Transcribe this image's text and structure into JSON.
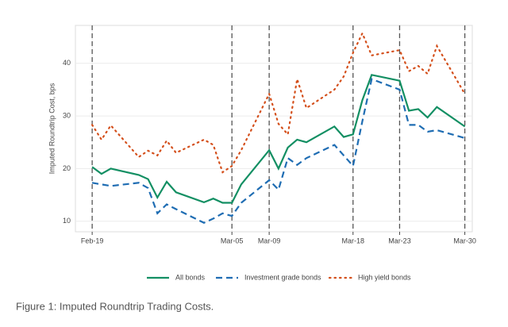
{
  "chart_data": {
    "type": "line",
    "ylabel": "Imputed Roundtrip Cost, bps",
    "caption": "Figure 1: Imputed Roundtrip Trading Costs.",
    "x": [
      0,
      1,
      2,
      5,
      6,
      7,
      8,
      9,
      12,
      13,
      14,
      15,
      16,
      19,
      20,
      21,
      22,
      23,
      26,
      27,
      28,
      29,
      30,
      33,
      34,
      35,
      36,
      37,
      40
    ],
    "xlim": [
      -1.8,
      40.8
    ],
    "xticks": [
      {
        "value": 0,
        "label": "Feb-19"
      },
      {
        "value": 15,
        "label": "Mar-05"
      },
      {
        "value": 19,
        "label": "Mar-09"
      },
      {
        "value": 28,
        "label": "Mar-18"
      },
      {
        "value": 33,
        "label": "Mar-23"
      },
      {
        "value": 40,
        "label": "Mar-30"
      }
    ],
    "ylim": [
      8,
      47.2
    ],
    "yticks": [
      10,
      20,
      30,
      40
    ],
    "grid": true,
    "tick_vlines": true,
    "legend": "bottom",
    "series": [
      {
        "name": "All bonds",
        "color": "#138f63",
        "dash": "solid",
        "values": [
          20.3,
          19,
          20,
          18.8,
          18,
          14.5,
          17.5,
          15.5,
          13.6,
          14.3,
          13.5,
          13.5,
          17,
          23.5,
          20,
          24,
          25.5,
          25,
          28,
          26,
          26.5,
          33,
          37.8,
          36.7,
          31,
          31.3,
          29.7,
          31.7,
          28
        ]
      },
      {
        "name": "Investment grade bonds",
        "color": "#1f6db3",
        "dash": "dashed",
        "values": [
          17.3,
          17,
          16.7,
          17.3,
          16.3,
          11.5,
          13.2,
          12.3,
          9.7,
          10.5,
          11.5,
          11,
          13.5,
          17.8,
          16,
          22,
          20.7,
          22,
          24.5,
          22.5,
          20.5,
          29,
          37,
          35,
          28.3,
          28.3,
          27,
          27.3,
          25.8
        ]
      },
      {
        "name": "High yield bonds",
        "color": "#d4501c",
        "dash": "dotted",
        "values": [
          28.3,
          25.5,
          28.2,
          22.2,
          23.4,
          22.5,
          25.3,
          23,
          25.5,
          24.5,
          19.3,
          20.5,
          23.5,
          34.2,
          28.5,
          26.5,
          37,
          31.5,
          35,
          37.5,
          42,
          45.7,
          41.5,
          42.5,
          38.5,
          39.5,
          38,
          43.3,
          34.2
        ]
      }
    ]
  }
}
